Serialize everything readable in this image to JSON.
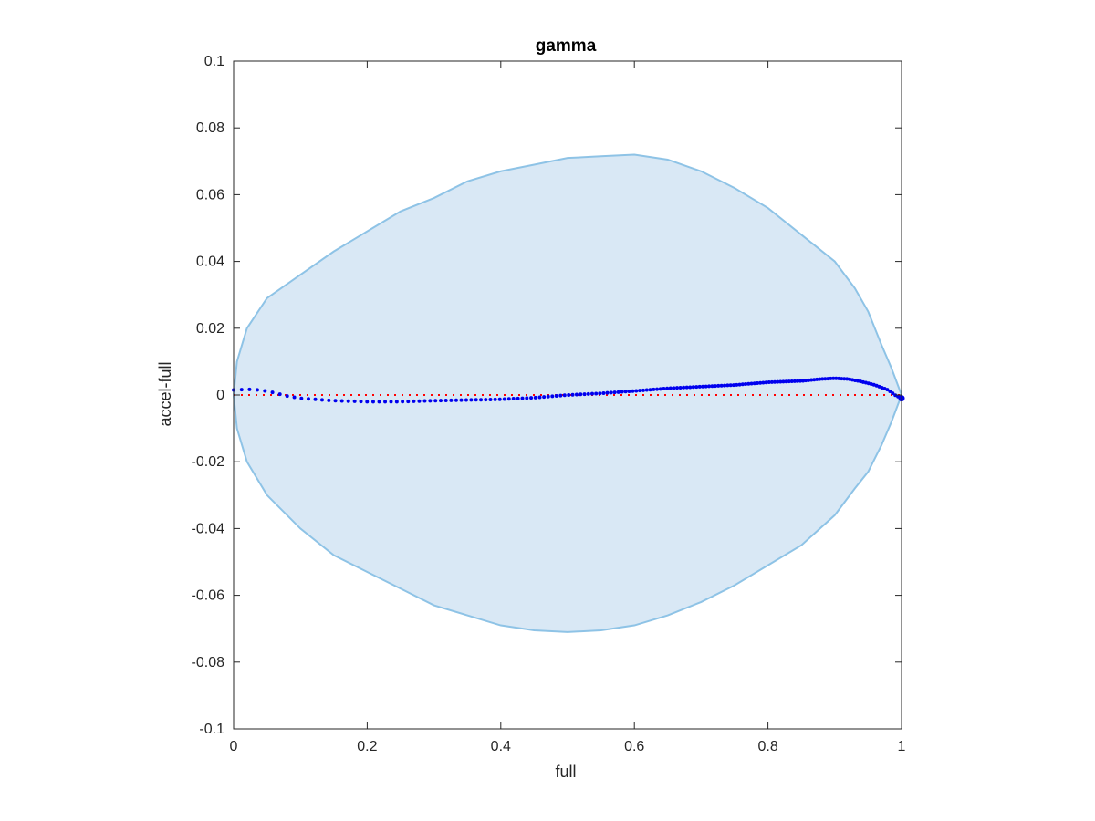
{
  "chart_data": {
    "type": "area",
    "title": "gamma",
    "xlabel": "full",
    "ylabel": "accel-full",
    "xlim": [
      0,
      1
    ],
    "ylim": [
      -0.1,
      0.1
    ],
    "xticks": [
      0,
      0.2,
      0.4,
      0.6,
      0.8,
      1
    ],
    "xtick_labels": [
      "0",
      "0.2",
      "0.4",
      "0.6",
      "0.8",
      "1"
    ],
    "yticks": [
      -0.1,
      -0.08,
      -0.06,
      -0.04,
      -0.02,
      0,
      0.02,
      0.04,
      0.06,
      0.08,
      0.1
    ],
    "ytick_labels": [
      "-0.1",
      "-0.08",
      "-0.06",
      "-0.04",
      "-0.02",
      "0",
      "0.02",
      "0.04",
      "0.06",
      "0.08",
      "0.1"
    ],
    "grid": false,
    "colors": {
      "band_fill": "#d9e8f5",
      "band_edge": "#8ec3e6",
      "series": "#0000ee",
      "reference": "#ff0000",
      "axes": "#262626"
    },
    "band": {
      "upper": [
        [
          0,
          0.0
        ],
        [
          0.005,
          0.01
        ],
        [
          0.02,
          0.02
        ],
        [
          0.05,
          0.029
        ],
        [
          0.1,
          0.036
        ],
        [
          0.15,
          0.043
        ],
        [
          0.2,
          0.049
        ],
        [
          0.25,
          0.055
        ],
        [
          0.3,
          0.059
        ],
        [
          0.35,
          0.064
        ],
        [
          0.4,
          0.067
        ],
        [
          0.45,
          0.069
        ],
        [
          0.5,
          0.071
        ],
        [
          0.55,
          0.0715
        ],
        [
          0.6,
          0.072
        ],
        [
          0.65,
          0.0705
        ],
        [
          0.7,
          0.067
        ],
        [
          0.75,
          0.062
        ],
        [
          0.8,
          0.056
        ],
        [
          0.85,
          0.048
        ],
        [
          0.9,
          0.04
        ],
        [
          0.93,
          0.032
        ],
        [
          0.95,
          0.025
        ],
        [
          0.97,
          0.015
        ],
        [
          0.985,
          0.008
        ],
        [
          1,
          0.0
        ]
      ],
      "lower": [
        [
          0,
          0.0
        ],
        [
          0.005,
          -0.01
        ],
        [
          0.02,
          -0.02
        ],
        [
          0.05,
          -0.03
        ],
        [
          0.1,
          -0.04
        ],
        [
          0.15,
          -0.048
        ],
        [
          0.2,
          -0.053
        ],
        [
          0.25,
          -0.058
        ],
        [
          0.3,
          -0.063
        ],
        [
          0.35,
          -0.066
        ],
        [
          0.4,
          -0.069
        ],
        [
          0.45,
          -0.0705
        ],
        [
          0.5,
          -0.071
        ],
        [
          0.55,
          -0.0705
        ],
        [
          0.6,
          -0.069
        ],
        [
          0.65,
          -0.066
        ],
        [
          0.7,
          -0.062
        ],
        [
          0.75,
          -0.057
        ],
        [
          0.8,
          -0.051
        ],
        [
          0.85,
          -0.045
        ],
        [
          0.9,
          -0.036
        ],
        [
          0.93,
          -0.028
        ],
        [
          0.95,
          -0.023
        ],
        [
          0.97,
          -0.015
        ],
        [
          0.985,
          -0.008
        ],
        [
          1,
          0.0
        ]
      ]
    },
    "series": [
      {
        "points": [
          [
            0,
            0.0015
          ],
          [
            0.02,
            0.0017
          ],
          [
            0.04,
            0.0015
          ],
          [
            0.06,
            0.0007
          ],
          [
            0.08,
            -0.0003
          ],
          [
            0.1,
            -0.001
          ],
          [
            0.15,
            -0.0017
          ],
          [
            0.2,
            -0.002
          ],
          [
            0.25,
            -0.002
          ],
          [
            0.3,
            -0.0017
          ],
          [
            0.35,
            -0.0015
          ],
          [
            0.4,
            -0.0013
          ],
          [
            0.45,
            -0.0008
          ],
          [
            0.5,
            0.0
          ],
          [
            0.55,
            0.0005
          ],
          [
            0.6,
            0.0012
          ],
          [
            0.65,
            0.002
          ],
          [
            0.7,
            0.0025
          ],
          [
            0.75,
            0.003
          ],
          [
            0.8,
            0.0038
          ],
          [
            0.85,
            0.0042
          ],
          [
            0.88,
            0.0048
          ],
          [
            0.9,
            0.005
          ],
          [
            0.92,
            0.0048
          ],
          [
            0.94,
            0.004
          ],
          [
            0.96,
            0.003
          ],
          [
            0.98,
            0.0015
          ],
          [
            0.99,
            0.0
          ],
          [
            1,
            -0.001
          ]
        ]
      },
      {
        "points": [
          [
            0,
            0
          ],
          [
            1,
            0
          ]
        ]
      }
    ]
  }
}
